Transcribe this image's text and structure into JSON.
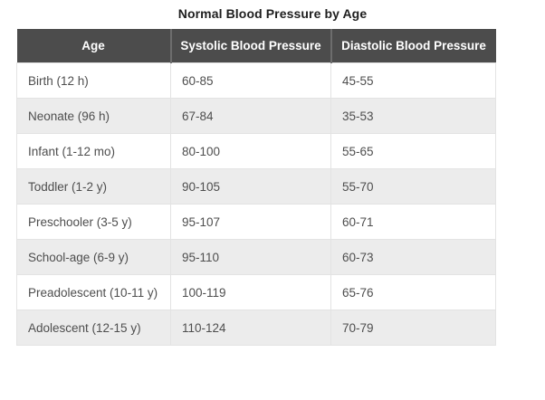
{
  "colors": {
    "header_bg": "#4c4c4c",
    "header_text": "#ffffff",
    "header_separator": "#6d6d6d",
    "alt_row_bg": "#ececec",
    "row_border": "#e3e3e3",
    "body_text": "#4e4e4e",
    "title_text": "#1e1e1e",
    "page_bg": "#ffffff"
  },
  "chart_data": {
    "type": "table",
    "title": "Normal Blood Pressure by Age",
    "columns": [
      "Age",
      "Systolic Blood Pressure",
      "Diastolic Blood Pressure"
    ],
    "rows": [
      [
        "Birth (12 h)",
        "60-85",
        "45-55"
      ],
      [
        "Neonate (96 h)",
        "67-84",
        "35-53"
      ],
      [
        "Infant (1-12 mo)",
        "80-100",
        "55-65"
      ],
      [
        "Toddler (1-2 y)",
        "90-105",
        "55-70"
      ],
      [
        "Preschooler (3-5 y)",
        "95-107",
        "60-71"
      ],
      [
        "School-age (6-9 y)",
        "95-110",
        "60-73"
      ],
      [
        "Preadolescent (10-11 y)",
        "100-119",
        "65-76"
      ],
      [
        "Adolescent (12-15 y)",
        "110-124",
        "70-79"
      ]
    ]
  }
}
